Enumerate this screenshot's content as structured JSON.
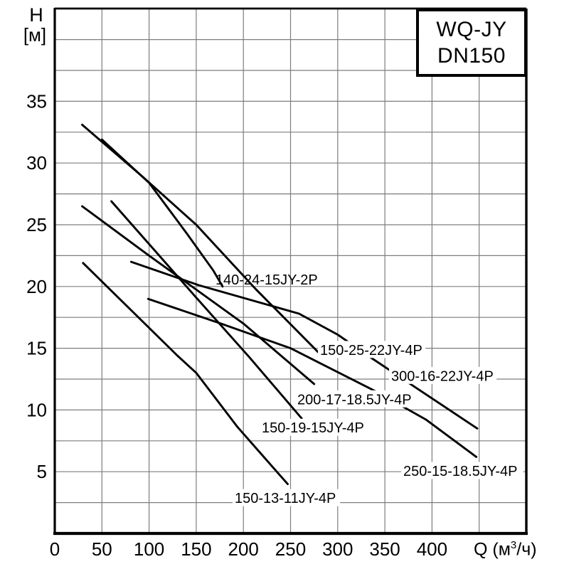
{
  "title_box": {
    "line1": "WQ-JY",
    "line2": "DN150"
  },
  "axes": {
    "y": {
      "title_line1": "H",
      "title_line2": "[м]"
    },
    "x": {
      "label_pre": "Q (м",
      "label_sup": "3",
      "label_post": "/ч)"
    }
  },
  "colors": {
    "curve": "#000000",
    "grid": "#7d7d7d",
    "frame": "#000000",
    "background": "#ffffff",
    "text": "#000000"
  },
  "chart_data": {
    "type": "line",
    "title": "WQ-JY DN150 submersible pump H-Q performance curves",
    "xlabel": "Q (м³/ч)",
    "ylabel": "H [м]",
    "xlim": [
      0,
      500
    ],
    "ylim": [
      0,
      42.5
    ],
    "grid": true,
    "x_grid_step": 50,
    "y_grid_step": 2.5,
    "x_ticks": [
      {
        "value": 0,
        "label": "0"
      },
      {
        "value": 50,
        "label": "50"
      },
      {
        "value": 100,
        "label": "100"
      },
      {
        "value": 150,
        "label": "150"
      },
      {
        "value": 200,
        "label": "200"
      },
      {
        "value": 250,
        "label": "250"
      },
      {
        "value": 300,
        "label": "300"
      },
      {
        "value": 350,
        "label": "350"
      },
      {
        "value": 400,
        "label": "400"
      }
    ],
    "y_ticks": [
      {
        "value": 5,
        "label": "5"
      },
      {
        "value": 10,
        "label": "10"
      },
      {
        "value": 15,
        "label": "15"
      },
      {
        "value": 20,
        "label": "20"
      },
      {
        "value": 25,
        "label": "25"
      },
      {
        "value": 30,
        "label": "30"
      },
      {
        "value": 35,
        "label": "35"
      }
    ],
    "series": [
      {
        "name": "150-25-22JY-4P",
        "points": [
          [
            29,
            33.1
          ],
          [
            93,
            28.9
          ],
          [
            150,
            25.0
          ],
          [
            213,
            19.8
          ],
          [
            279,
            14.7
          ]
        ],
        "label": {
          "text": "150-25-22JY-4P",
          "q": 281.3,
          "h": 14.9,
          "bg": true,
          "under": false
        }
      },
      {
        "name": "140-24-15JY-2P",
        "points": [
          [
            50,
            31.9
          ],
          [
            100,
            28.4
          ],
          [
            140,
            24.3
          ],
          [
            168,
            21.3
          ],
          [
            178,
            20.0
          ]
        ],
        "label": {
          "text": "140-24-15JY-2P",
          "q": 170.4,
          "h": 20.6,
          "bg": false,
          "under": true
        }
      },
      {
        "name": "150-19-15JY-4P",
        "points": [
          [
            60,
            26.9
          ],
          [
            150,
            19.1
          ],
          [
            206,
            14.3
          ],
          [
            262,
            9.3
          ]
        ],
        "label": {
          "text": "150-19-15JY-4P",
          "q": 219.5,
          "h": 8.6,
          "bg": true,
          "under": false
        }
      },
      {
        "name": "200-17-18.5JY-4P",
        "points": [
          [
            29,
            26.5
          ],
          [
            100,
            22.5
          ],
          [
            200,
            17.0
          ],
          [
            275,
            12.1
          ]
        ],
        "label": {
          "text": "200-17-18.5JY-4P",
          "q": 257.2,
          "h": 10.9,
          "bg": true,
          "under": false
        }
      },
      {
        "name": "150-13-11JY-4P",
        "points": [
          [
            30,
            21.9
          ],
          [
            130,
            14.4
          ],
          [
            150,
            13.0
          ],
          [
            194,
            8.6
          ],
          [
            247,
            4.0
          ]
        ],
        "label": {
          "text": "150-13-11JY-4P",
          "q": 190.8,
          "h": 2.9,
          "bg": true,
          "under": false
        }
      },
      {
        "name": "300-16-22JY-4P",
        "points": [
          [
            81,
            22.0
          ],
          [
            153,
            20.1
          ],
          [
            259,
            17.8
          ],
          [
            300,
            16.1
          ],
          [
            336,
            14.2
          ],
          [
            383,
            11.8
          ],
          [
            448,
            8.5
          ]
        ],
        "label": {
          "text": "300-16-22JY-4P",
          "q": 356.7,
          "h": 12.8,
          "bg": true,
          "under": false
        }
      },
      {
        "name": "250-15-18.5JY-4P",
        "points": [
          [
            99,
            19.0
          ],
          [
            176,
            17.0
          ],
          [
            250,
            15.0
          ],
          [
            343,
            11.4
          ],
          [
            394,
            9.2
          ],
          [
            447,
            6.2
          ]
        ],
        "label": {
          "text": "250-15-18.5JY-4P",
          "q": 369.5,
          "h": 5.1,
          "bg": true,
          "under": false
        }
      }
    ]
  }
}
